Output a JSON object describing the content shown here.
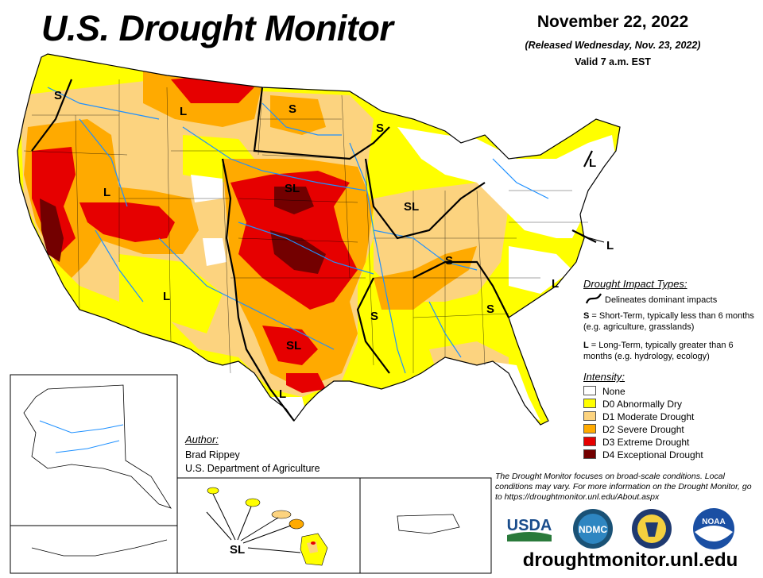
{
  "header": {
    "title": "U.S. Drought Monitor",
    "date": "November 22, 2022",
    "released": "(Released Wednesday, Nov. 23, 2022)",
    "valid": "Valid 7 a.m. EST"
  },
  "impact_legend": {
    "title": "Drought Impact Types:",
    "line_label": "Delineates dominant impacts",
    "s_key": "S",
    "s_text": " = Short-Term, typically less than 6 months (e.g. agriculture, grasslands)",
    "l_key": "L",
    "l_text": " = Long-Term, typically greater than 6 months (e.g. hydrology, ecology)"
  },
  "intensity": {
    "title": "Intensity:",
    "levels": [
      {
        "label": "None",
        "color": "#ffffff"
      },
      {
        "label": "D0 Abnormally Dry",
        "color": "#ffff00"
      },
      {
        "label": "D1 Moderate Drought",
        "color": "#fcd37f"
      },
      {
        "label": "D2 Severe Drought",
        "color": "#ffaa00"
      },
      {
        "label": "D3 Extreme Drought",
        "color": "#e60000"
      },
      {
        "label": "D4 Exceptional Drought",
        "color": "#730000"
      }
    ]
  },
  "author": {
    "heading": "Author:",
    "name": "Brad Rippey",
    "org": "U.S. Department of Agriculture"
  },
  "disclaimer": "The Drought Monitor focuses on broad-scale conditions. Local conditions may vary. For more information on the Drought Monitor, go to https://droughtmonitor.unl.edu/About.aspx",
  "url": "droughtmonitor.unl.edu",
  "logos": {
    "usda": "USDA",
    "ndmc": "NDMC",
    "noaa": "NOAA"
  },
  "map_labels": {
    "s": "S",
    "l": "L",
    "sl": "SL"
  },
  "colors": {
    "water": "#1e90ff",
    "boundary": "#000000"
  }
}
